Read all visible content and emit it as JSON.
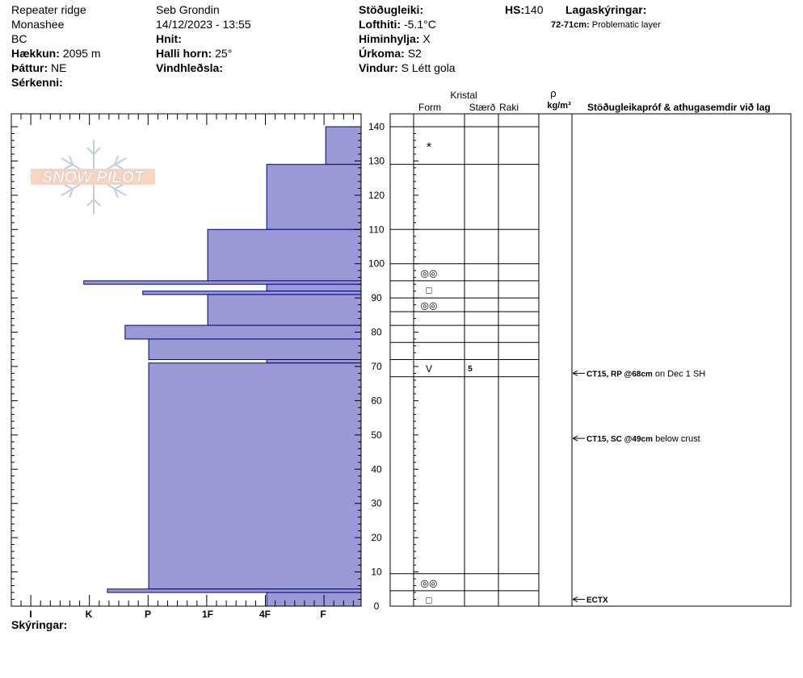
{
  "header": {
    "location": "Repeater ridge",
    "range": "Monashee",
    "region": "BC",
    "elevation_label": "Hækkun:",
    "elevation_value": "2095 m",
    "aspect_label": "Þáttur:",
    "aspect_value": "NE",
    "features_label": "Sérkenni:",
    "observer": "Seb Grondin",
    "datetime": "14/12/2023 - 13:55",
    "coords_label": "Hnit:",
    "slope_label": "Halli horn:",
    "slope_value": "25°",
    "wind_loading_label": "Vindhleðsla:",
    "stability_label": "Stöðugleiki:",
    "air_temp_label": "Lofthiti:",
    "air_temp_value": "-5.1°C",
    "sky_label": "Himinhylja:",
    "sky_value": "X",
    "precip_label": "Úrkoma:",
    "precip_value": "S2",
    "wind_label": "Vindur:",
    "wind_value": "S Létt gola",
    "hs_label": "HS:",
    "hs_value": "140",
    "layer_notes_label": "Lagaskýringar:",
    "layer_note_depth": "72-71cm:",
    "layer_note_text": "Problematic layer"
  },
  "logo_text": "SNOW PILOT",
  "columns": {
    "crystal": "Kristal",
    "form": "Form",
    "size": "Stærð",
    "wetness": "Raki",
    "density_symbol": "ρ",
    "density_unit": "kg/m³",
    "tests": "Stöðugleikapróf & athugasemdir við lag"
  },
  "footer": {
    "legend_label": "Skýringar:"
  },
  "colors": {
    "fill": "#9999d6",
    "stroke": "#00007a"
  },
  "chart_data": {
    "type": "bar",
    "orientation": "horizontal-steps",
    "hardness_categories": [
      "I",
      "K",
      "P",
      "1F",
      "4F",
      "F"
    ],
    "y_axis": {
      "min": 0,
      "max": 140,
      "ticks": [
        0,
        10,
        20,
        30,
        40,
        50,
        60,
        70,
        80,
        90,
        100,
        110,
        120,
        130,
        140
      ],
      "unit": "cm"
    },
    "hardness_profile": [
      {
        "top": 140,
        "bottom": 129,
        "hardness": 0.6
      },
      {
        "top": 129,
        "bottom": 110,
        "hardness": 1.6
      },
      {
        "top": 110,
        "bottom": 95,
        "hardness": 2.6
      },
      {
        "top": 95,
        "bottom": 94,
        "hardness": 4.7
      },
      {
        "top": 94,
        "bottom": 92,
        "hardness": 1.6
      },
      {
        "top": 92,
        "bottom": 91,
        "hardness": 3.7
      },
      {
        "top": 91,
        "bottom": 82,
        "hardness": 2.6
      },
      {
        "top": 82,
        "bottom": 78,
        "hardness": 4.0
      },
      {
        "top": 78,
        "bottom": 72,
        "hardness": 3.6
      },
      {
        "top": 72,
        "bottom": 71,
        "hardness": 1.6
      },
      {
        "top": 71,
        "bottom": 5,
        "hardness": 3.6
      },
      {
        "top": 5,
        "bottom": 4,
        "hardness": 4.3
      },
      {
        "top": 4,
        "bottom": 0,
        "hardness": 1.6
      }
    ],
    "layer_boundaries": [
      140,
      129,
      110,
      100,
      95,
      90,
      86,
      82,
      77,
      72,
      67,
      9.5,
      4.5
    ],
    "layer_grid_rows": [
      140,
      129,
      110,
      100,
      95,
      90,
      86,
      82,
      77,
      72,
      67,
      9.5,
      4.5,
      0
    ],
    "grains": [
      {
        "depth": 134,
        "symbol": "*"
      },
      {
        "depth": 97.5,
        "symbol": "◎◎"
      },
      {
        "depth": 92.5,
        "symbol": "□"
      },
      {
        "depth": 88,
        "symbol": "◎◎"
      },
      {
        "depth": 69.5,
        "symbol": "V",
        "size": "5"
      },
      {
        "depth": 7,
        "symbol": "◎◎"
      },
      {
        "depth": 2,
        "symbol": "□"
      }
    ],
    "tests": [
      {
        "depth": 68,
        "label": "CT15, RP @68cm",
        "comment": "on Dec 1 SH"
      },
      {
        "depth": 49,
        "label": "CT15, SC @49cm",
        "comment": "below crust"
      },
      {
        "depth": 2,
        "label": "ECTX",
        "comment": ""
      }
    ]
  }
}
